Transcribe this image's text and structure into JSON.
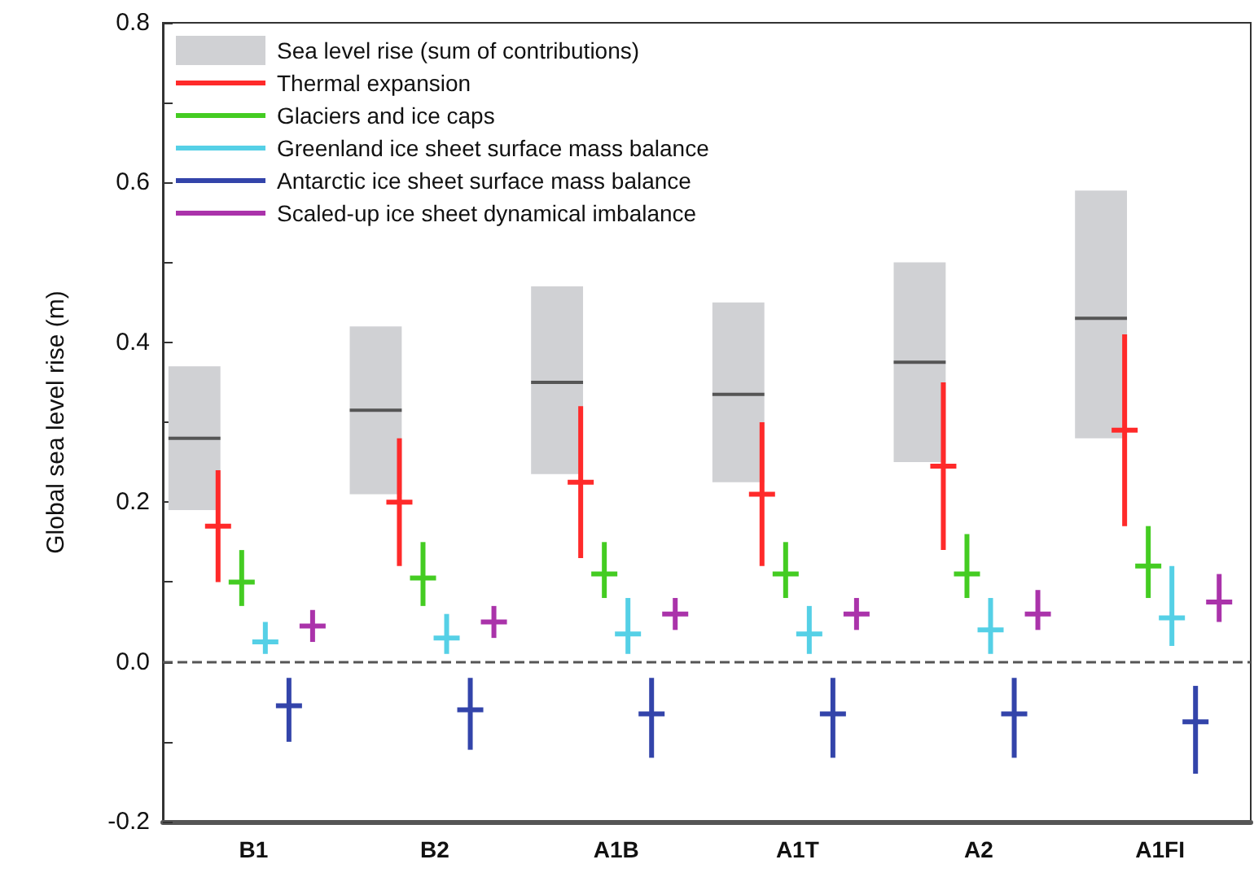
{
  "chart_data": {
    "type": "box",
    "ylabel": "Global sea level rise (m)",
    "categories": [
      "B1",
      "B2",
      "A1B",
      "A1T",
      "A2",
      "A1FI"
    ],
    "ylim": [
      -0.2,
      0.8
    ],
    "yticks": [
      {
        "value": -0.2,
        "label": "-0.2"
      },
      {
        "value": -0.1,
        "label": null
      },
      {
        "value": 0,
        "label": "0.0"
      },
      {
        "value": 0.1,
        "label": null
      },
      {
        "value": 0.2,
        "label": "0.2"
      },
      {
        "value": 0.3,
        "label": null
      },
      {
        "value": 0.4,
        "label": "0.4"
      },
      {
        "value": 0.5,
        "label": null
      },
      {
        "value": 0.6,
        "label": "0.6"
      },
      {
        "value": 0.7,
        "label": null
      },
      {
        "value": 0.8,
        "label": "0.8"
      }
    ],
    "grid": false,
    "legend": "top left",
    "ref_lines": [
      {
        "axis": "y",
        "value": 0,
        "label": null,
        "color": "#555555",
        "line_style": "dashed"
      }
    ],
    "series": [
      {
        "name": "Sea level rise (sum of contributions)",
        "color": "#d0d1d4",
        "boxes": [
          {
            "low": 0.19,
            "q1": 0.19,
            "median": 0.28,
            "q3": 0.37,
            "high": 0.37
          },
          {
            "low": 0.21,
            "q1": 0.21,
            "median": 0.315,
            "q3": 0.42,
            "high": 0.42
          },
          {
            "low": 0.235,
            "q1": 0.235,
            "median": 0.35,
            "q3": 0.47,
            "high": 0.47
          },
          {
            "low": 0.225,
            "q1": 0.225,
            "median": 0.335,
            "q3": 0.45,
            "high": 0.45
          },
          {
            "low": 0.25,
            "q1": 0.25,
            "median": 0.375,
            "q3": 0.5,
            "high": 0.5
          },
          {
            "low": 0.28,
            "q1": 0.28,
            "median": 0.43,
            "q3": 0.59,
            "high": 0.59
          }
        ]
      },
      {
        "name": "Thermal expansion",
        "color": "#ff2a2a",
        "boxes": [
          {
            "low": 0.1,
            "q1": 0.17,
            "median": 0.17,
            "q3": 0.17,
            "high": 0.24
          },
          {
            "low": 0.12,
            "q1": 0.2,
            "median": 0.2,
            "q3": 0.2,
            "high": 0.28
          },
          {
            "low": 0.13,
            "q1": 0.225,
            "median": 0.225,
            "q3": 0.225,
            "high": 0.32
          },
          {
            "low": 0.12,
            "q1": 0.21,
            "median": 0.21,
            "q3": 0.21,
            "high": 0.3
          },
          {
            "low": 0.14,
            "q1": 0.245,
            "median": 0.245,
            "q3": 0.245,
            "high": 0.35
          },
          {
            "low": 0.17,
            "q1": 0.29,
            "median": 0.29,
            "q3": 0.29,
            "high": 0.41
          }
        ]
      },
      {
        "name": "Glaciers and ice caps",
        "color": "#44cc22",
        "boxes": [
          {
            "low": 0.07,
            "q1": 0.1,
            "median": 0.1,
            "q3": 0.1,
            "high": 0.14
          },
          {
            "low": 0.07,
            "q1": 0.105,
            "median": 0.105,
            "q3": 0.105,
            "high": 0.15
          },
          {
            "low": 0.08,
            "q1": 0.11,
            "median": 0.11,
            "q3": 0.11,
            "high": 0.15
          },
          {
            "low": 0.08,
            "q1": 0.11,
            "median": 0.11,
            "q3": 0.11,
            "high": 0.15
          },
          {
            "low": 0.08,
            "q1": 0.11,
            "median": 0.11,
            "q3": 0.11,
            "high": 0.16
          },
          {
            "low": 0.08,
            "q1": 0.12,
            "median": 0.12,
            "q3": 0.12,
            "high": 0.17
          }
        ]
      },
      {
        "name": "Greenland ice sheet surface mass balance",
        "color": "#55d0e6",
        "boxes": [
          {
            "low": 0.01,
            "q1": 0.025,
            "median": 0.025,
            "q3": 0.025,
            "high": 0.05
          },
          {
            "low": 0.01,
            "q1": 0.03,
            "median": 0.03,
            "q3": 0.03,
            "high": 0.06
          },
          {
            "low": 0.01,
            "q1": 0.035,
            "median": 0.035,
            "q3": 0.035,
            "high": 0.08
          },
          {
            "low": 0.01,
            "q1": 0.035,
            "median": 0.035,
            "q3": 0.035,
            "high": 0.07
          },
          {
            "low": 0.01,
            "q1": 0.04,
            "median": 0.04,
            "q3": 0.04,
            "high": 0.08
          },
          {
            "low": 0.02,
            "q1": 0.055,
            "median": 0.055,
            "q3": 0.055,
            "high": 0.12
          }
        ]
      },
      {
        "name": "Antarctic ice sheet surface mass balance",
        "color": "#3344aa",
        "boxes": [
          {
            "low": -0.1,
            "q1": -0.055,
            "median": -0.055,
            "q3": -0.055,
            "high": -0.02
          },
          {
            "low": -0.11,
            "q1": -0.06,
            "median": -0.06,
            "q3": -0.06,
            "high": -0.02
          },
          {
            "low": -0.12,
            "q1": -0.065,
            "median": -0.065,
            "q3": -0.065,
            "high": -0.02
          },
          {
            "low": -0.12,
            "q1": -0.065,
            "median": -0.065,
            "q3": -0.065,
            "high": -0.02
          },
          {
            "low": -0.12,
            "q1": -0.065,
            "median": -0.065,
            "q3": -0.065,
            "high": -0.02
          },
          {
            "low": -0.14,
            "q1": -0.075,
            "median": -0.075,
            "q3": -0.075,
            "high": -0.03
          }
        ]
      },
      {
        "name": "Scaled-up ice sheet dynamical imbalance",
        "color": "#aa33aa",
        "boxes": [
          {
            "low": 0.025,
            "q1": 0.045,
            "median": 0.045,
            "q3": 0.045,
            "high": 0.065
          },
          {
            "low": 0.03,
            "q1": 0.05,
            "median": 0.05,
            "q3": 0.05,
            "high": 0.07
          },
          {
            "low": 0.04,
            "q1": 0.06,
            "median": 0.06,
            "q3": 0.06,
            "high": 0.08
          },
          {
            "low": 0.04,
            "q1": 0.06,
            "median": 0.06,
            "q3": 0.06,
            "high": 0.08
          },
          {
            "low": 0.04,
            "q1": 0.06,
            "median": 0.06,
            "q3": 0.06,
            "high": 0.09
          },
          {
            "low": 0.05,
            "q1": 0.075,
            "median": 0.075,
            "q3": 0.075,
            "high": 0.11
          }
        ]
      }
    ]
  }
}
